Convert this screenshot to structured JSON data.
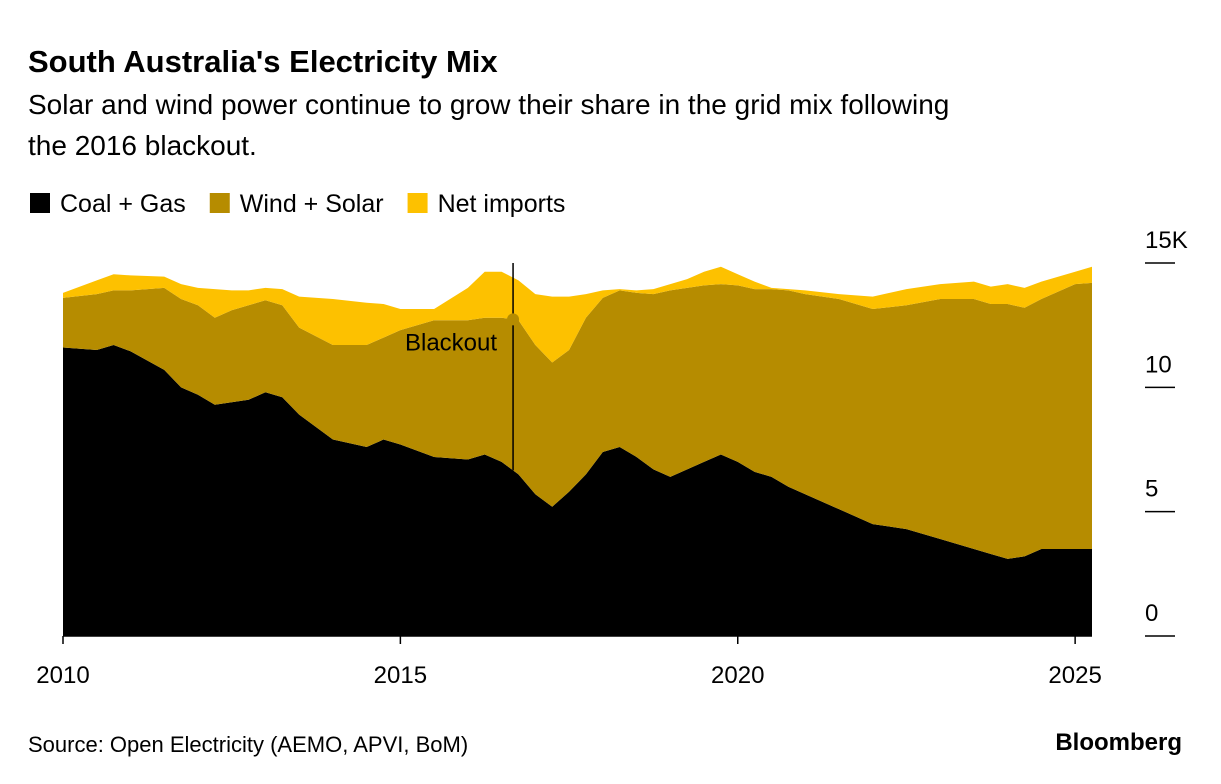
{
  "chart_data": {
    "type": "stacked-area",
    "title": "South Australia's Electricity Mix",
    "subtitle": [
      "Solar and wind power continue to grow their share in the grid mix following",
      "the 2016 blackout."
    ],
    "x": [
      2010,
      2010.5,
      2010.75,
      2011,
      2011.5,
      2011.75,
      2012,
      2012.25,
      2012.5,
      2012.75,
      2013,
      2013.25,
      2013.5,
      2014,
      2014.5,
      2014.75,
      2015,
      2015.5,
      2016,
      2016.25,
      2016.5,
      2016.75,
      2017,
      2017.25,
      2017.5,
      2017.75,
      2018,
      2018.25,
      2018.5,
      2018.75,
      2019,
      2019.25,
      2019.5,
      2019.75,
      2020,
      2020.25,
      2020.5,
      2020.75,
      2021,
      2021.5,
      2022,
      2022.5,
      2023,
      2023.5,
      2023.75,
      2024,
      2024.25,
      2024.5,
      2025,
      2025.25
    ],
    "series": [
      {
        "name": "Coal + Gas",
        "color": "#000000",
        "values": [
          11.6,
          11.5,
          11.7,
          11.45,
          10.7,
          10.0,
          9.7,
          9.3,
          9.4,
          9.5,
          9.8,
          9.6,
          8.9,
          7.9,
          7.6,
          7.9,
          7.7,
          7.2,
          7.1,
          7.3,
          7.0,
          6.5,
          5.7,
          5.2,
          5.8,
          6.5,
          7.4,
          7.6,
          7.2,
          6.7,
          6.4,
          6.7,
          7.0,
          7.3,
          7.0,
          6.6,
          6.4,
          6.0,
          5.7,
          5.1,
          4.5,
          4.3,
          3.9,
          3.5,
          3.3,
          3.1,
          3.2,
          3.5,
          3.5,
          3.5
        ]
      },
      {
        "name": "Wind + Solar",
        "color": "#b68c00",
        "values": [
          2.0,
          2.25,
          2.2,
          2.45,
          3.3,
          3.55,
          3.6,
          3.5,
          3.7,
          3.8,
          3.7,
          3.7,
          3.5,
          3.8,
          4.1,
          4.1,
          4.6,
          5.5,
          5.6,
          5.5,
          5.8,
          6.2,
          6.0,
          5.8,
          5.7,
          6.3,
          6.2,
          6.3,
          6.6,
          7.05,
          7.5,
          7.3,
          7.1,
          6.85,
          7.1,
          7.35,
          7.55,
          7.9,
          8.05,
          8.45,
          8.65,
          9.0,
          9.65,
          10.05,
          10.05,
          10.25,
          10.0,
          10.05,
          10.65,
          10.7
        ]
      },
      {
        "name": "Net imports",
        "color": "#fdc100",
        "values": [
          0.2,
          0.55,
          0.65,
          0.6,
          0.45,
          0.6,
          0.7,
          1.15,
          0.8,
          0.6,
          0.5,
          0.65,
          1.25,
          1.85,
          1.7,
          1.35,
          0.85,
          0.45,
          1.3,
          1.85,
          1.85,
          1.6,
          2.05,
          2.65,
          2.15,
          0.95,
          0.3,
          0.05,
          0.1,
          0.2,
          0.25,
          0.35,
          0.55,
          0.7,
          0.45,
          0.3,
          0.05,
          0.05,
          0.15,
          0.2,
          0.5,
          0.65,
          0.6,
          0.7,
          0.7,
          0.8,
          0.8,
          0.7,
          0.5,
          0.65
        ]
      }
    ],
    "xlim": [
      2010,
      2025.25
    ],
    "xticks": [
      2010,
      2015,
      2020,
      2025
    ],
    "ylim": [
      0,
      15
    ],
    "yticks": [
      0,
      5,
      10,
      {
        "value": 15,
        "label": "15K"
      }
    ],
    "annotation": {
      "text": "Blackout",
      "x": 2016.67
    },
    "source": "Source: Open Electricity (AEMO, APVI, BoM)",
    "credit": "Bloomberg"
  }
}
